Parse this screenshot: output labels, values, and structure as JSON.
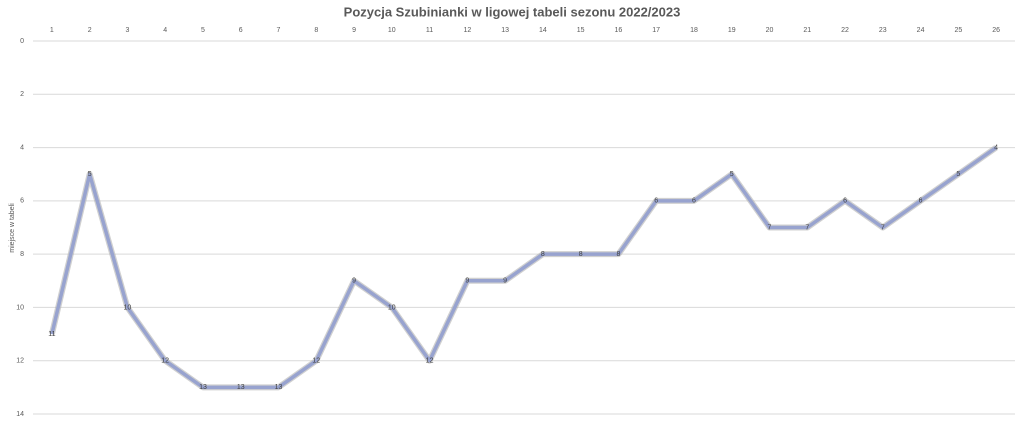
{
  "chart_data": {
    "type": "line",
    "title": "Pozycja Szubinianki w ligowej tabeli sezonu 2022/2023",
    "y_label": "miejsce w tabeli",
    "categories": [
      "1",
      "2",
      "3",
      "4",
      "5",
      "6",
      "7",
      "8",
      "9",
      "10",
      "11",
      "12",
      "13",
      "14",
      "15",
      "16",
      "17",
      "18",
      "19",
      "20",
      "21",
      "22",
      "23",
      "24",
      "25",
      "26"
    ],
    "values": [
      11,
      5,
      10,
      12,
      13,
      13,
      13,
      12,
      9,
      10,
      12,
      9,
      9,
      8,
      8,
      8,
      6,
      6,
      5,
      7,
      7,
      6,
      7,
      6,
      5,
      4
    ],
    "color": "#98a3cf",
    "ylim": [
      0,
      14
    ],
    "yticks": [
      0,
      2,
      4,
      6,
      8,
      10,
      12,
      14
    ],
    "y_inverted": true,
    "grid": true,
    "data_labels": true
  }
}
